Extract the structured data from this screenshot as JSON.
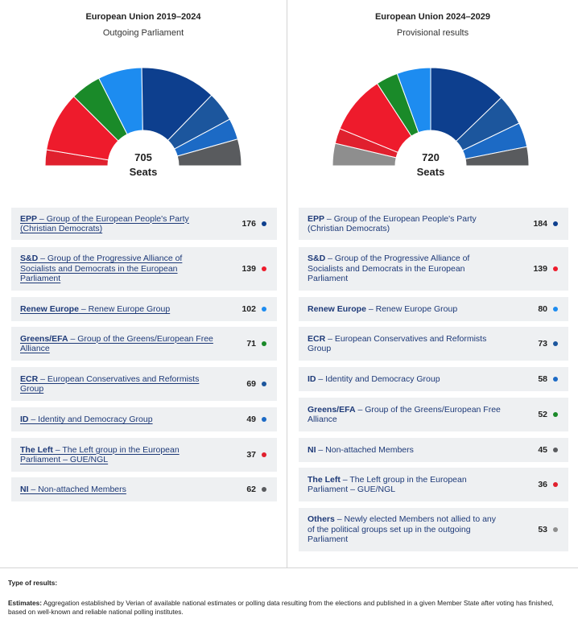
{
  "chart_data": [
    {
      "type": "pie",
      "variant": "hemicycle",
      "title": "European Union 2019-2024",
      "subtitle": "Outgoing Parliament",
      "total": 705,
      "total_label": "Seats",
      "series": [
        {
          "name": "The Left",
          "value": 37,
          "color": "#e0202e"
        },
        {
          "name": "S&D",
          "value": 139,
          "color": "#ee1b2c"
        },
        {
          "name": "Greens/EFA",
          "value": 71,
          "color": "#1a8a29"
        },
        {
          "name": "Renew Europe",
          "value": 102,
          "color": "#1d8cf0"
        },
        {
          "name": "EPP",
          "value": 176,
          "color": "#0d3f8e"
        },
        {
          "name": "ECR",
          "value": 69,
          "color": "#1c569d"
        },
        {
          "name": "ID",
          "value": 49,
          "color": "#1c6ac5"
        },
        {
          "name": "NI",
          "value": 62,
          "color": "#595b5e"
        }
      ]
    },
    {
      "type": "pie",
      "variant": "hemicycle",
      "title": "European Union 2024-2029",
      "subtitle": "Provisional results",
      "total": 720,
      "total_label": "Seats",
      "series": [
        {
          "name": "Others",
          "value": 53,
          "color": "#8e8e8e"
        },
        {
          "name": "The Left",
          "value": 36,
          "color": "#e0202e"
        },
        {
          "name": "S&D",
          "value": 139,
          "color": "#ee1b2c"
        },
        {
          "name": "Greens/EFA",
          "value": 52,
          "color": "#1a8a29"
        },
        {
          "name": "Renew Europe",
          "value": 80,
          "color": "#1d8cf0"
        },
        {
          "name": "EPP",
          "value": 184,
          "color": "#0d3f8e"
        },
        {
          "name": "ECR",
          "value": 73,
          "color": "#1c569d"
        },
        {
          "name": "ID",
          "value": 58,
          "color": "#1c6ac5"
        },
        {
          "name": "NI",
          "value": 45,
          "color": "#595b5e"
        }
      ]
    }
  ],
  "panels": [
    {
      "title": "European Union 2019–2024",
      "subtitle": "Outgoing Parliament",
      "total": "705",
      "total_label": "Seats",
      "groups": [
        {
          "abbr": "EPP",
          "name": " – Group of the European People's Party (Christian Democrats)",
          "seats": "176",
          "dot": "#0d3f8e"
        },
        {
          "abbr": "S&D",
          "name": " – Group of the Progressive Alliance of Socialists and Democrats in the European Parliament",
          "seats": "139",
          "dot": "#ee1b2c"
        },
        {
          "abbr": "Renew Europe",
          "name": " – Renew Europe Group",
          "seats": "102",
          "dot": "#1d8cf0"
        },
        {
          "abbr": "Greens/EFA",
          "name": " – Group of the Greens/European Free Alliance",
          "seats": "71",
          "dot": "#1a8a29"
        },
        {
          "abbr": "ECR",
          "name": " – European Conservatives and Reformists Group",
          "seats": "69",
          "dot": "#1c569d"
        },
        {
          "abbr": "ID",
          "name": " – Identity and Democracy Group",
          "seats": "49",
          "dot": "#1c6ac5"
        },
        {
          "abbr": "The Left",
          "name": " – The Left group in the European Parliament – GUE/NGL",
          "seats": "37",
          "dot": "#e0202e"
        },
        {
          "abbr": "NI",
          "name": " – Non-attached Members",
          "seats": "62",
          "dot": "#595b5e"
        }
      ]
    },
    {
      "title": "European Union 2024–2029",
      "subtitle": "Provisional results",
      "total": "720",
      "total_label": "Seats",
      "groups": [
        {
          "abbr": "EPP",
          "name": " – Group of the European People's Party (Christian Democrats)",
          "seats": "184",
          "dot": "#0d3f8e"
        },
        {
          "abbr": "S&D",
          "name": " – Group of the Progressive Alliance of Socialists and Democrats in the European Parliament",
          "seats": "139",
          "dot": "#ee1b2c"
        },
        {
          "abbr": "Renew Europe",
          "name": " – Renew Europe Group",
          "seats": "80",
          "dot": "#1d8cf0"
        },
        {
          "abbr": "ECR",
          "name": " – European Conservatives and Reformists Group",
          "seats": "73",
          "dot": "#1c569d"
        },
        {
          "abbr": "ID",
          "name": " – Identity and Democracy Group",
          "seats": "58",
          "dot": "#1c6ac5"
        },
        {
          "abbr": "Greens/EFA",
          "name": " – Group of the Greens/European Free Alliance",
          "seats": "52",
          "dot": "#1a8a29"
        },
        {
          "abbr": "NI",
          "name": " – Non-attached Members",
          "seats": "45",
          "dot": "#595b5e"
        },
        {
          "abbr": "The Left",
          "name": " – The Left group in the European Parliament – GUE/NGL",
          "seats": "36",
          "dot": "#e0202e"
        },
        {
          "abbr": "Others",
          "name": " – Newly elected Members not allied to any of the political groups set up in the outgoing Parliament",
          "seats": "53",
          "dot": "#8e8e8e"
        }
      ]
    }
  ],
  "footer": {
    "type_label": "Type of results:",
    "estimates_label": "Estimates:",
    "estimates_text": " Aggregation established by Verian of available national estimates or polling data resulting from the elections and published in a given Member State after voting has finished, based on well-known and reliable national polling institutes."
  }
}
